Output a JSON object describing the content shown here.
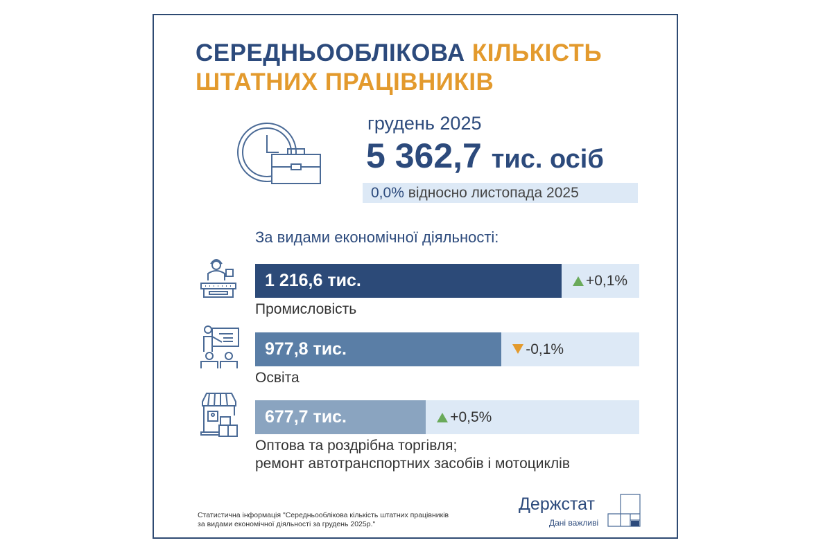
{
  "header": {
    "title_part1": "СЕРЕДНЬООБЛІКОВА",
    "title_part2": "КІЛЬКІСТЬ",
    "title_line2": "ШТАТНИХ ПРАЦІВНИКІВ"
  },
  "summary": {
    "period": "грудень 2025",
    "value": "5 362,7",
    "unit": "тис. осіб",
    "change": "0,0%",
    "change_text": "відносно листопада 2025"
  },
  "colors": {
    "primary": "#2c4a7c",
    "accent": "#e39a2d",
    "up": "#6aaa5a",
    "down": "#e39a2d",
    "track": "#dde9f6"
  },
  "chart_data": {
    "type": "bar",
    "orientation": "horizontal",
    "title": "За видами економічної діяльності:",
    "xlim": [
      0,
      1525
    ],
    "categories": [
      "Промисловість",
      "Освіта",
      "Оптова та роздрібна торгівля; ремонт автотранспортних засобів і мотоциклів"
    ],
    "category_lines": [
      [
        "Промисловість"
      ],
      [
        "Освіта"
      ],
      [
        "Оптова та роздрібна торгівля;",
        "ремонт автотранспортних засобів і мотоциклів"
      ]
    ],
    "values": [
      1216.6,
      977.8,
      677.7
    ],
    "value_labels": [
      "1 216,6 тис.",
      "977,8 тис.",
      "677,7 тис."
    ],
    "changes": [
      "+0,1%",
      "-0,1%",
      "+0,5%"
    ],
    "directions": [
      "up",
      "down",
      "up"
    ],
    "bar_colors": [
      "#2c4a78",
      "#5a7ea6",
      "#8aa4c0"
    ],
    "icons": [
      "factory-worker-icon",
      "teacher-icon",
      "shop-icon"
    ]
  },
  "footer": {
    "source_line1": "Статистична інформація \"Середньооблікова кількість штатних працівників",
    "source_line2": "за видами економічної діяльності за грудень 2025р.\"",
    "logo": "Держстат",
    "tagline": "Дані важливі"
  }
}
